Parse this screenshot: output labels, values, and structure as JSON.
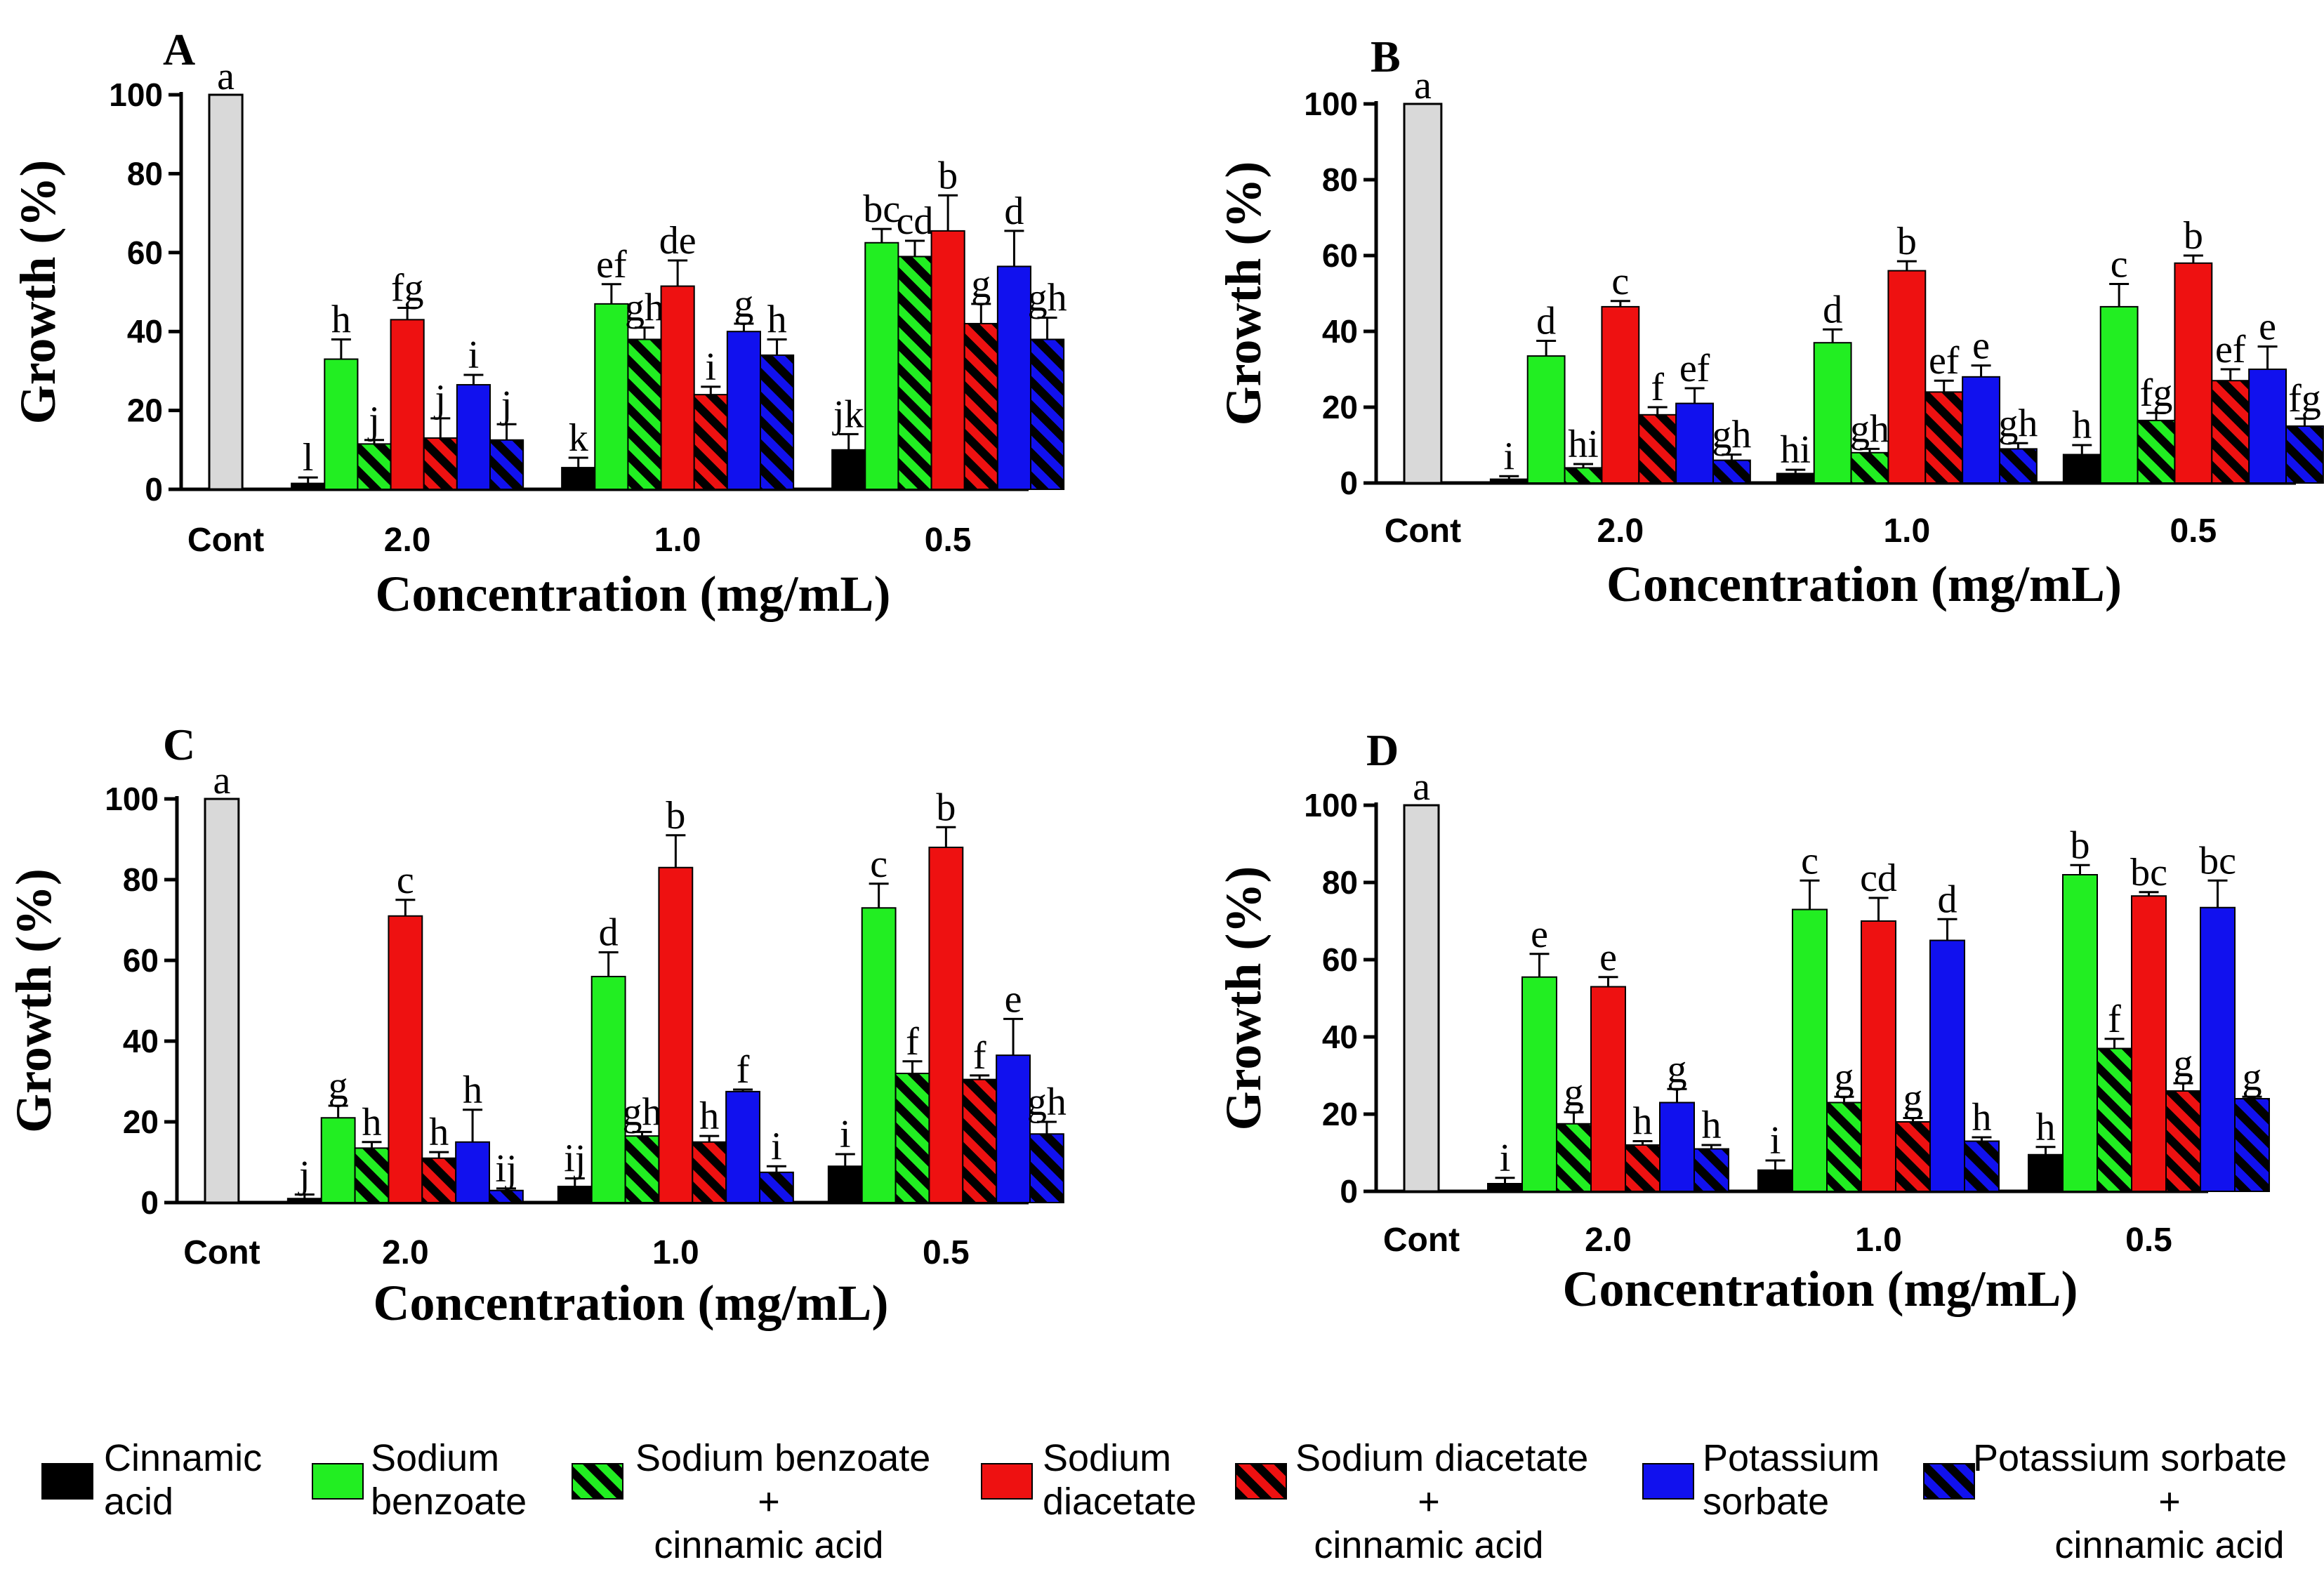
{
  "legend": [
    {
      "key": "cinnamic_acid",
      "lines": [
        "Cinnamic",
        "acid"
      ],
      "color": "#000000",
      "hatch": false
    },
    {
      "key": "sodium_benzoate",
      "lines": [
        "Sodium",
        "benzoate"
      ],
      "color": "#22ee22",
      "hatch": false
    },
    {
      "key": "sb_ca",
      "lines": [
        "Sodium benzoate",
        "+",
        "cinnamic acid"
      ],
      "color": "#22ee22",
      "hatch": true
    },
    {
      "key": "sodium_diacetate",
      "lines": [
        "Sodium",
        "diacetate"
      ],
      "color": "#ee1111",
      "hatch": false
    },
    {
      "key": "sd_ca",
      "lines": [
        "Sodium diacetate",
        "+",
        "cinnamic acid"
      ],
      "color": "#ee1111",
      "hatch": true
    },
    {
      "key": "potassium_sorbate",
      "lines": [
        "Potassium",
        "sorbate"
      ],
      "color": "#1111ee",
      "hatch": false
    },
    {
      "key": "ps_ca",
      "lines": [
        "Potassium sorbate",
        "+",
        "cinnamic acid"
      ],
      "color": "#1111ee",
      "hatch": true
    }
  ],
  "control_color": "#d9d9d9",
  "chart_data": [
    {
      "panel": "A",
      "type": "bar",
      "xlabel": "Concentration (mg/mL)",
      "ylabel": "Growth (%)",
      "ylim": [
        0,
        100
      ],
      "yticks": [
        0,
        20,
        40,
        60,
        80,
        100
      ],
      "control": {
        "label": "Cont",
        "value": 100,
        "sig": "a"
      },
      "categories": [
        "2.0",
        "1.0",
        "0.5"
      ],
      "series": [
        {
          "name": "Cinnamic acid",
          "values": [
            1.5,
            5.5,
            10
          ],
          "errors": [
            1.5,
            2.5,
            4
          ],
          "sig": [
            "l",
            "k",
            "jk"
          ]
        },
        {
          "name": "Sodium benzoate",
          "values": [
            33,
            47,
            62.5
          ],
          "errors": [
            5,
            5,
            3.5
          ],
          "sig": [
            "h",
            "ef",
            "bc"
          ]
        },
        {
          "name": "Sodium benzoate + cinnamic acid",
          "values": [
            11.5,
            38,
            59
          ],
          "errors": [
            1,
            3,
            4
          ],
          "sig": [
            "j",
            "gh",
            "cd"
          ]
        },
        {
          "name": "Sodium diacetate",
          "values": [
            43,
            51.5,
            65.5
          ],
          "errors": [
            3,
            6.5,
            9
          ],
          "sig": [
            "fg",
            "de",
            "b"
          ]
        },
        {
          "name": "Sodium diacetate + cinnamic acid",
          "values": [
            13,
            24,
            42
          ],
          "errors": [
            5,
            2,
            5
          ],
          "sig": [
            "j",
            "i",
            "g"
          ]
        },
        {
          "name": "Potassium sorbate",
          "values": [
            26.5,
            40,
            56.5
          ],
          "errors": [
            2.5,
            2,
            9
          ],
          "sig": [
            "i",
            "g",
            "d"
          ]
        },
        {
          "name": "Potassium sorbate + cinnamic acid",
          "values": [
            12.5,
            34,
            38
          ],
          "errors": [
            4,
            4,
            5.5
          ],
          "sig": [
            "j",
            "h",
            "gh"
          ]
        }
      ]
    },
    {
      "panel": "B",
      "type": "bar",
      "xlabel": "Concentration (mg/mL)",
      "ylabel": "Growth (%)",
      "ylim": [
        0,
        100
      ],
      "yticks": [
        0,
        20,
        40,
        60,
        80,
        100
      ],
      "control": {
        "label": "Cont",
        "value": 100,
        "sig": "a"
      },
      "categories": [
        "2.0",
        "1.0",
        "0.5"
      ],
      "series": [
        {
          "name": "Cinnamic acid",
          "values": [
            1,
            2.5,
            7.5
          ],
          "errors": [
            0.8,
            1,
            2.5
          ],
          "sig": [
            "i",
            "hi",
            "h"
          ]
        },
        {
          "name": "Sodium benzoate",
          "values": [
            33.5,
            37,
            46.5
          ],
          "errors": [
            4,
            3.5,
            6
          ],
          "sig": [
            "d",
            "d",
            "c"
          ]
        },
        {
          "name": "Sodium benzoate + cinnamic acid",
          "values": [
            4,
            8,
            16.5
          ],
          "errors": [
            1,
            1,
            2
          ],
          "sig": [
            "hi",
            "gh",
            "fg"
          ]
        },
        {
          "name": "Sodium diacetate",
          "values": [
            46.5,
            56,
            58
          ],
          "errors": [
            1.5,
            2.5,
            2
          ],
          "sig": [
            "c",
            "b",
            "b"
          ]
        },
        {
          "name": "Sodium diacetate + cinnamic acid",
          "values": [
            18,
            24,
            27
          ],
          "errors": [
            2,
            3,
            3
          ],
          "sig": [
            "f",
            "ef",
            "ef"
          ]
        },
        {
          "name": "Potassium sorbate",
          "values": [
            21,
            28,
            30
          ],
          "errors": [
            4,
            3,
            6
          ],
          "sig": [
            "ef",
            "e",
            "e"
          ]
        },
        {
          "name": "Potassium sorbate + cinnamic acid",
          "values": [
            6,
            9,
            15
          ],
          "errors": [
            1.5,
            1.5,
            2
          ],
          "sig": [
            "gh",
            "gh",
            "fg"
          ]
        }
      ]
    },
    {
      "panel": "C",
      "type": "bar",
      "xlabel": "Concentration (mg/mL)",
      "ylabel": "Growth (%)",
      "ylim": [
        0,
        100
      ],
      "yticks": [
        0,
        20,
        40,
        60,
        80,
        100
      ],
      "control": {
        "label": "Cont",
        "value": 100,
        "sig": "a"
      },
      "categories": [
        "2.0",
        "1.0",
        "0.5"
      ],
      "series": [
        {
          "name": "Cinnamic acid",
          "values": [
            1,
            4,
            9
          ],
          "errors": [
            1,
            2,
            3
          ],
          "sig": [
            "j",
            "ij",
            "i"
          ]
        },
        {
          "name": "Sodium benzoate",
          "values": [
            21,
            56,
            73
          ],
          "errors": [
            3,
            6,
            6
          ],
          "sig": [
            "g",
            "d",
            "c"
          ]
        },
        {
          "name": "Sodium benzoate + cinnamic acid",
          "values": [
            13.5,
            16.5,
            32
          ],
          "errors": [
            1.5,
            1,
            3
          ],
          "sig": [
            "h",
            "gh",
            "f"
          ]
        },
        {
          "name": "Sodium diacetate",
          "values": [
            71,
            83,
            88
          ],
          "errors": [
            4,
            8,
            5
          ],
          "sig": [
            "c",
            "b",
            "b"
          ]
        },
        {
          "name": "Sodium diacetate + cinnamic acid",
          "values": [
            11,
            15,
            30.5
          ],
          "errors": [
            1.5,
            1.5,
            1
          ],
          "sig": [
            "h",
            "h",
            "f"
          ]
        },
        {
          "name": "Potassium sorbate",
          "values": [
            15,
            27.5,
            36.5
          ],
          "errors": [
            8,
            0.5,
            9
          ],
          "sig": [
            "h",
            "f",
            "e"
          ]
        },
        {
          "name": "Potassium sorbate + cinnamic acid",
          "values": [
            3,
            7.5,
            17
          ],
          "errors": [
            0.5,
            1.5,
            3
          ],
          "sig": [
            "ij",
            "i",
            "gh"
          ]
        }
      ]
    },
    {
      "panel": "D",
      "type": "bar",
      "xlabel": "Concentration (mg/mL)",
      "ylabel": "Growth (%)",
      "ylim": [
        0,
        100
      ],
      "yticks": [
        0,
        20,
        40,
        60,
        80,
        100
      ],
      "control": {
        "label": "Cont",
        "value": 100,
        "sig": "a"
      },
      "categories": [
        "2.0",
        "1.0",
        "0.5"
      ],
      "series": [
        {
          "name": "Cinnamic acid",
          "values": [
            2,
            5.5,
            9.5
          ],
          "errors": [
            1.5,
            2.5,
            2
          ],
          "sig": [
            "i",
            "i",
            "h"
          ]
        },
        {
          "name": "Sodium benzoate",
          "values": [
            55.5,
            73,
            82
          ],
          "errors": [
            6,
            7.5,
            2.5
          ],
          "sig": [
            "e",
            "c",
            "b"
          ]
        },
        {
          "name": "Sodium benzoate + cinnamic acid",
          "values": [
            17.5,
            23,
            37
          ],
          "errors": [
            3,
            1.5,
            2.5
          ],
          "sig": [
            "g",
            "g",
            "f"
          ]
        },
        {
          "name": "Sodium diacetate",
          "values": [
            53,
            70,
            76.5
          ],
          "errors": [
            2.5,
            6,
            1
          ],
          "sig": [
            "e",
            "cd",
            "bc"
          ]
        },
        {
          "name": "Sodium diacetate + cinnamic acid",
          "values": [
            12,
            18,
            26
          ],
          "errors": [
            1,
            1,
            2
          ],
          "sig": [
            "h",
            "g",
            "g"
          ]
        },
        {
          "name": "Potassium sorbate",
          "values": [
            23,
            65,
            73.5
          ],
          "errors": [
            3.5,
            5.5,
            7
          ],
          "sig": [
            "g",
            "d",
            "bc"
          ]
        },
        {
          "name": "Potassium sorbate + cinnamic acid",
          "values": [
            11,
            13,
            24
          ],
          "errors": [
            1,
            1,
            0.5
          ],
          "sig": [
            "h",
            "h",
            "g"
          ]
        }
      ]
    }
  ]
}
